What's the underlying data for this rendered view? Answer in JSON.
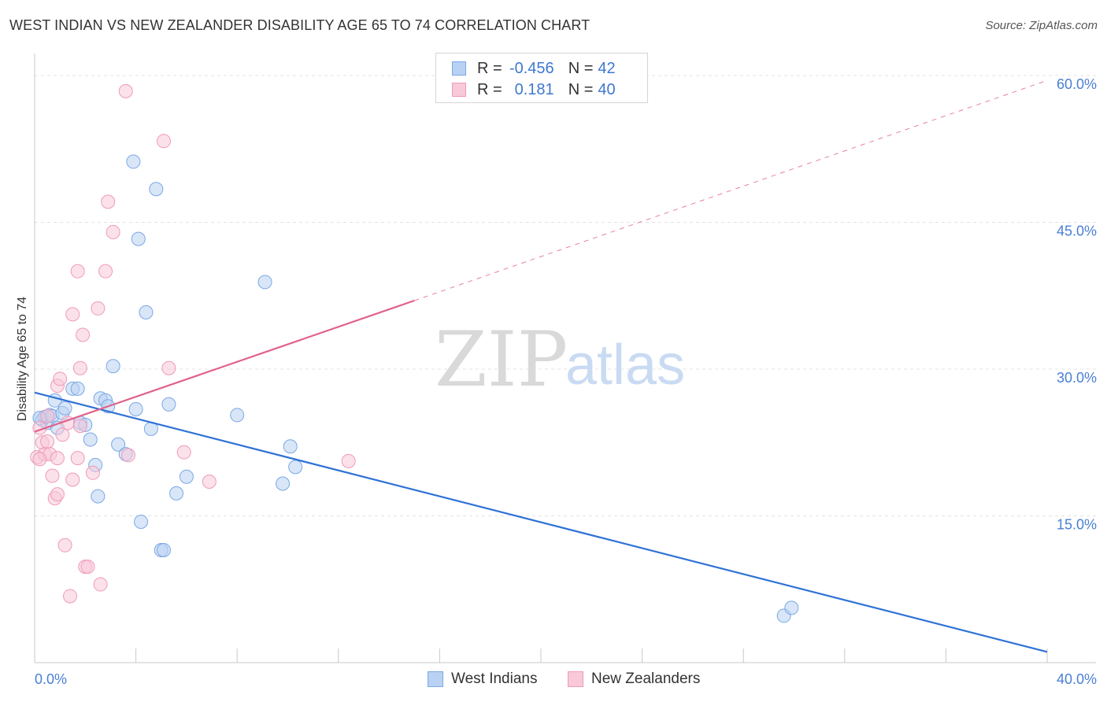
{
  "chart_data": {
    "type": "scatter",
    "title": "WEST INDIAN VS NEW ZEALANDER DISABILITY AGE 65 TO 74 CORRELATION CHART",
    "source": "Source: ZipAtlas.com",
    "ylabel": "Disability Age 65 to 74",
    "xlabel": "",
    "xlim": [
      0,
      40
    ],
    "ylim": [
      0,
      60
    ],
    "x_tick_labels": [
      "0.0%",
      "40.0%"
    ],
    "y_tick_labels": [
      "15.0%",
      "30.0%",
      "45.0%",
      "60.0%"
    ],
    "y_ticks": [
      15,
      30,
      45,
      60
    ],
    "watermark": {
      "part1": "ZIP",
      "part2": "atlas"
    },
    "series": [
      {
        "name": "West Indians",
        "color": "#7aa8e6",
        "fill": "#b9d2f3",
        "line_color": "#2f72d6",
        "R": "-0.456",
        "N": "42",
        "trend": {
          "x0": 0,
          "y0": 27.6,
          "x1": 40,
          "y1": 1.1
        },
        "points": [
          [
            0.3,
            24.8
          ],
          [
            0.4,
            25.1
          ],
          [
            0.5,
            24.5
          ],
          [
            0.6,
            25.3
          ],
          [
            0.7,
            25.2
          ],
          [
            0.8,
            26.8
          ],
          [
            0.9,
            24.0
          ],
          [
            1.1,
            25.5
          ],
          [
            1.2,
            26.0
          ],
          [
            1.5,
            28.0
          ],
          [
            1.7,
            28.0
          ],
          [
            1.8,
            24.5
          ],
          [
            2.0,
            24.3
          ],
          [
            2.2,
            22.8
          ],
          [
            2.4,
            20.2
          ],
          [
            2.5,
            17.0
          ],
          [
            2.6,
            27.0
          ],
          [
            2.8,
            26.8
          ],
          [
            2.9,
            26.2
          ],
          [
            3.1,
            30.3
          ],
          [
            3.3,
            22.3
          ],
          [
            3.6,
            21.3
          ],
          [
            3.9,
            51.2
          ],
          [
            4.0,
            25.9
          ],
          [
            4.1,
            43.3
          ],
          [
            4.2,
            14.4
          ],
          [
            4.4,
            35.8
          ],
          [
            4.6,
            23.9
          ],
          [
            4.8,
            48.4
          ],
          [
            5.0,
            11.5
          ],
          [
            5.1,
            11.5
          ],
          [
            5.3,
            26.4
          ],
          [
            5.6,
            17.3
          ],
          [
            6.0,
            19.0
          ],
          [
            8.0,
            25.3
          ],
          [
            9.1,
            38.9
          ],
          [
            9.8,
            18.3
          ],
          [
            10.1,
            22.1
          ],
          [
            10.3,
            20.0
          ],
          [
            29.6,
            4.8
          ],
          [
            29.9,
            5.6
          ],
          [
            0.2,
            25.0
          ]
        ]
      },
      {
        "name": "New Zealanders",
        "color": "#f09ab8",
        "fill": "#f8c9d9",
        "line_color": "#e0628a",
        "R": "0.181",
        "N": "40",
        "trend": {
          "x0": 0,
          "y0": 23.6,
          "x1": 15,
          "y1": 37.0,
          "x2": 40,
          "y2": 59.5
        },
        "points": [
          [
            0.1,
            21.0
          ],
          [
            0.2,
            24.0
          ],
          [
            0.3,
            22.5
          ],
          [
            0.4,
            21.3
          ],
          [
            0.5,
            22.6
          ],
          [
            0.6,
            21.3
          ],
          [
            0.7,
            19.1
          ],
          [
            0.8,
            16.8
          ],
          [
            0.9,
            17.2
          ],
          [
            0.9,
            20.9
          ],
          [
            0.9,
            28.3
          ],
          [
            1.0,
            29.0
          ],
          [
            1.1,
            23.3
          ],
          [
            1.2,
            12.0
          ],
          [
            1.3,
            24.5
          ],
          [
            1.5,
            35.6
          ],
          [
            1.4,
            6.8
          ],
          [
            1.5,
            18.7
          ],
          [
            1.8,
            30.1
          ],
          [
            1.7,
            20.9
          ],
          [
            1.7,
            40.0
          ],
          [
            1.9,
            33.5
          ],
          [
            2.0,
            9.8
          ],
          [
            2.1,
            9.8
          ],
          [
            2.3,
            19.4
          ],
          [
            2.5,
            36.2
          ],
          [
            2.6,
            8.0
          ],
          [
            2.8,
            40.0
          ],
          [
            2.9,
            47.1
          ],
          [
            3.1,
            44.0
          ],
          [
            3.7,
            21.2
          ],
          [
            3.6,
            58.4
          ],
          [
            5.1,
            53.3
          ],
          [
            5.3,
            30.1
          ],
          [
            5.9,
            21.5
          ],
          [
            6.9,
            18.5
          ],
          [
            12.4,
            20.6
          ],
          [
            0.2,
            20.8
          ],
          [
            0.5,
            25.2
          ],
          [
            1.8,
            24.2
          ]
        ]
      }
    ]
  },
  "legend_top": {
    "rows": [
      {
        "r_label": "R =",
        "r_value": "-0.456",
        "n_label": "N =",
        "n_value": "42"
      },
      {
        "r_label": "R =",
        "r_value": "0.181",
        "n_label": "N =",
        "n_value": "40"
      }
    ]
  },
  "legend_bottom": {
    "items": [
      "West Indians",
      "New Zealanders"
    ]
  }
}
